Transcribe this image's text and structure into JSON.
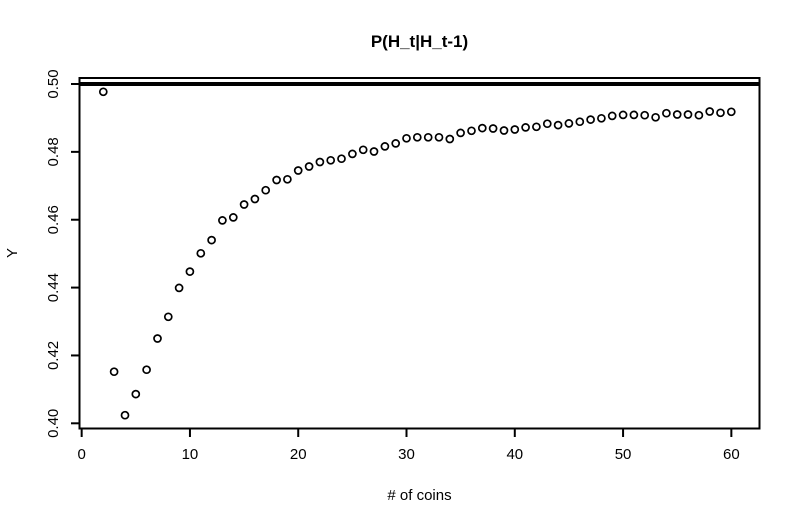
{
  "chart_data": {
    "type": "scatter",
    "title": "P(H_t|H_t-1)",
    "xlabel": "# of coins",
    "ylabel": "Y",
    "marker": "open-circle",
    "grid": false,
    "colors": {
      "foreground": "#000000",
      "background": "#ffffff"
    },
    "reference_line": {
      "y": 0.5,
      "style": "thick-solid-horizontal"
    },
    "xlim": [
      -0.2,
      62.6
    ],
    "ylim": [
      0.39847,
      0.50177
    ],
    "x_ticks": [
      0,
      10,
      20,
      30,
      40,
      50,
      60
    ],
    "x_tick_labels": [
      "0",
      "10",
      "20",
      "30",
      "40",
      "50",
      "60"
    ],
    "y_ticks": [
      0.4,
      0.42,
      0.44,
      0.46,
      0.48,
      0.5
    ],
    "y_tick_labels": [
      "0.40",
      "0.42",
      "0.44",
      "0.46",
      "0.48",
      "0.50"
    ],
    "x": [
      2,
      3,
      4,
      5,
      6,
      7,
      8,
      9,
      10,
      11,
      12,
      13,
      14,
      15,
      16,
      17,
      18,
      19,
      20,
      21,
      22,
      23,
      24,
      25,
      26,
      27,
      28,
      29,
      30,
      31,
      32,
      33,
      34,
      35,
      36,
      37,
      38,
      39,
      40,
      41,
      42,
      43,
      44,
      45,
      46,
      47,
      48,
      49,
      50,
      51,
      52,
      53,
      54,
      55,
      56,
      57,
      58,
      59,
      60
    ],
    "y": [
      0.4977,
      0.4152,
      0.4024,
      0.4086,
      0.4158,
      0.425,
      0.4314,
      0.4399,
      0.4447,
      0.4501,
      0.454,
      0.4598,
      0.4607,
      0.4645,
      0.4661,
      0.4687,
      0.4717,
      0.4719,
      0.4745,
      0.4757,
      0.477,
      0.4775,
      0.478,
      0.4794,
      0.4806,
      0.4801,
      0.4816,
      0.4825,
      0.484,
      0.4843,
      0.4843,
      0.4843,
      0.4838,
      0.4856,
      0.4862,
      0.487,
      0.4869,
      0.4863,
      0.4866,
      0.4872,
      0.4874,
      0.4883,
      0.4879,
      0.4884,
      0.4889,
      0.4895,
      0.4899,
      0.4906,
      0.4909,
      0.4909,
      0.4908,
      0.4902,
      0.4914,
      0.491,
      0.491,
      0.4908,
      0.4919,
      0.4915,
      0.4918
    ]
  }
}
